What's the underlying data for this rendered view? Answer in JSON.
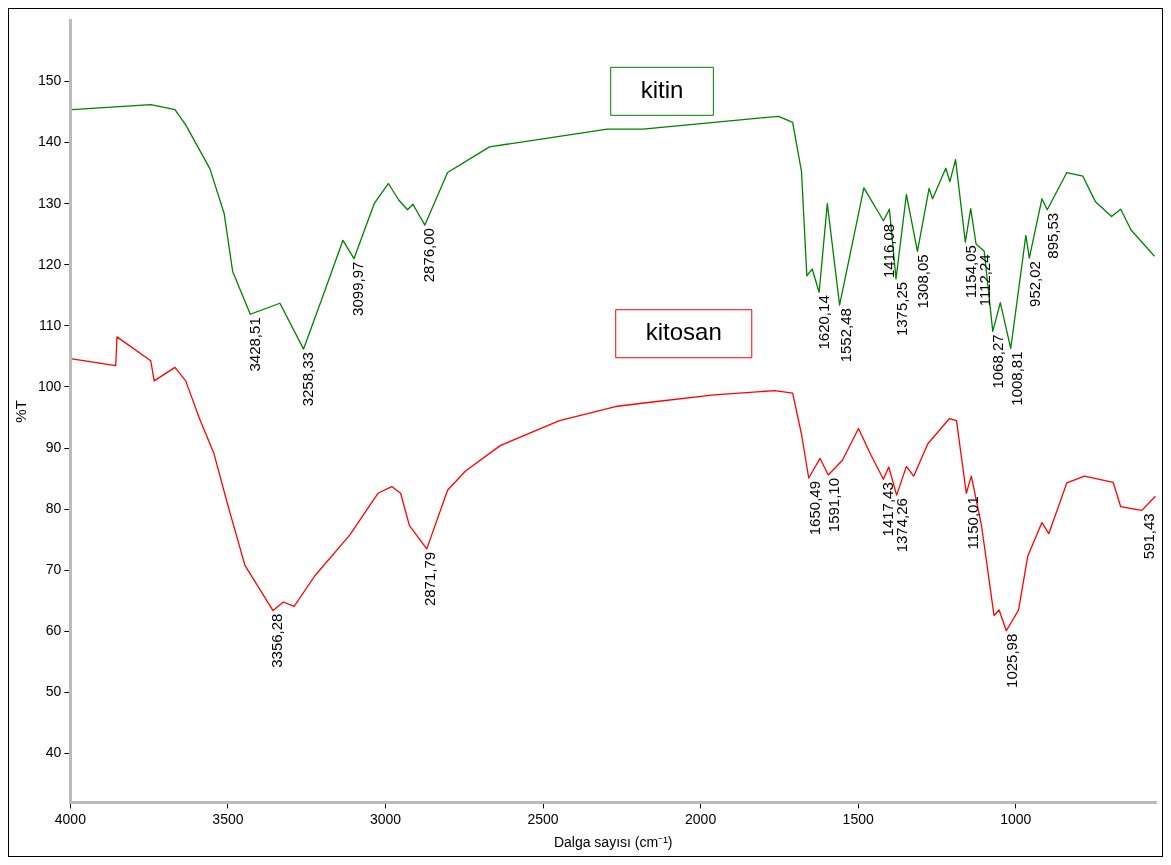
{
  "chart_data": {
    "type": "line",
    "xlabel": "Dalga sayısı (cm⁻¹)",
    "ylabel": "%T",
    "xlim": [
      4000,
      555
    ],
    "xticks": [
      4000,
      3500,
      3000,
      2500,
      2000,
      1500,
      1000
    ],
    "ylim": [
      32,
      160
    ],
    "yticks": [
      40,
      50,
      60,
      70,
      80,
      90,
      100,
      110,
      120,
      130,
      140,
      150
    ],
    "grid": false,
    "legend": false,
    "series": [
      {
        "name": "kitin",
        "color": "#008000",
        "x": [
          3995,
          3745,
          3668,
          3634,
          3557,
          3512,
          3485,
          3429,
          3335,
          3260,
          3202,
          3135,
          3100,
          3035,
          2991,
          2958,
          2930,
          2913,
          2875,
          2803,
          2670,
          2296,
          2183,
          1957,
          1753,
          1708,
          1680,
          1663,
          1646,
          1624,
          1598,
          1559,
          1482,
          1420,
          1401,
          1380,
          1347,
          1312,
          1275,
          1264,
          1222,
          1209,
          1191,
          1160,
          1143,
          1126,
          1100,
          1073,
          1049,
          1016,
          968,
          957,
          917,
          900,
          838,
          787,
          747,
          696,
          667,
          634,
          560
        ],
        "values": [
          145.4,
          146.2,
          145.4,
          142.9,
          135.7,
          128.4,
          118.9,
          111.9,
          113.7,
          106.2,
          114.4,
          124.0,
          121.0,
          130.1,
          133.3,
          130.6,
          129.0,
          129.9,
          126.5,
          135.1,
          139.3,
          142.2,
          142.2,
          143.3,
          144.3,
          143.3,
          135.3,
          118.2,
          119.3,
          115.5,
          130.0,
          113.4,
          132.6,
          127.2,
          129.1,
          117.7,
          131.5,
          122.2,
          132.5,
          130.8,
          135.8,
          133.6,
          137.2,
          123.7,
          129.2,
          123.4,
          122.2,
          109.1,
          113.8,
          106.3,
          124.8,
          121.1,
          130.8,
          129.0,
          135.1,
          134.5,
          130.3,
          127.9,
          129.1,
          125.7,
          121.4
        ]
      },
      {
        "name": "kitosan",
        "color": "#ff0000",
        "x": [
          3995,
          3856,
          3852,
          3745,
          3734,
          3668,
          3634,
          3590,
          3545,
          3501,
          3446,
          3357,
          3324,
          3290,
          3224,
          3113,
          3024,
          2980,
          2952,
          2924,
          2869,
          2803,
          2747,
          2636,
          2448,
          2270,
          2160,
          1957,
          1765,
          1708,
          1680,
          1657,
          1621,
          1595,
          1550,
          1499,
          1460,
          1420,
          1403,
          1378,
          1347,
          1324,
          1279,
          1211,
          1188,
          1157,
          1141,
          1109,
          1069,
          1053,
          1030,
          991,
          962,
          917,
          895,
          838,
          782,
          691,
          667,
          600,
          557
        ],
        "values": [
          104.6,
          103.5,
          108.2,
          104.3,
          101.0,
          103.2,
          101.0,
          94.8,
          89.2,
          80.8,
          70.8,
          63.4,
          64.8,
          64.1,
          69.1,
          75.8,
          82.6,
          83.7,
          82.6,
          77.3,
          73.5,
          83.1,
          86.2,
          90.4,
          94.5,
          96.8,
          97.5,
          98.7,
          99.4,
          99.0,
          92.3,
          85.1,
          88.3,
          85.6,
          88.0,
          93.2,
          88.9,
          84.9,
          86.9,
          82.3,
          87.0,
          85.4,
          90.7,
          94.8,
          94.5,
          82.6,
          85.4,
          77.4,
          62.6,
          63.5,
          60.1,
          63.5,
          72.3,
          77.8,
          76.0,
          84.3,
          85.4,
          84.4,
          80.4,
          79.8,
          82.1
        ]
      }
    ],
    "annotations": [
      {
        "text": "3428,51",
        "x": 3428.51,
        "y": 111.9
      },
      {
        "text": "3258,33",
        "x": 3258.33,
        "y": 106.2
      },
      {
        "text": "3099,97",
        "x": 3099.97,
        "y": 121.0
      },
      {
        "text": "2876,00",
        "x": 2876.0,
        "y": 126.5
      },
      {
        "text": "1620,14",
        "x": 1620.14,
        "y": 115.5
      },
      {
        "text": "1552,48",
        "x": 1552.48,
        "y": 113.4
      },
      {
        "text": "1416,08",
        "x": 1416.08,
        "y": 127.2
      },
      {
        "text": "1375,25",
        "x": 1375.25,
        "y": 117.7
      },
      {
        "text": "1308,05",
        "x": 1308.05,
        "y": 122.2
      },
      {
        "text": "1154,05",
        "x": 1154.05,
        "y": 123.7
      },
      {
        "text": "1112,24",
        "x": 1112.24,
        "y": 122.2
      },
      {
        "text": "1068,27",
        "x": 1068.27,
        "y": 109.1
      },
      {
        "text": "1008,81",
        "x": 1008.81,
        "y": 106.3
      },
      {
        "text": "952,02",
        "x": 952.02,
        "y": 121.1
      },
      {
        "text": "895,53",
        "x": 895.53,
        "y": 129.0
      },
      {
        "text": "3356,28",
        "x": 3356.28,
        "y": 63.4
      },
      {
        "text": "2871,79",
        "x": 2871.79,
        "y": 73.5
      },
      {
        "text": "1650,49",
        "x": 1650.49,
        "y": 85.1
      },
      {
        "text": "1591,10",
        "x": 1591.1,
        "y": 85.6
      },
      {
        "text": "1417,43",
        "x": 1417.43,
        "y": 84.9
      },
      {
        "text": "1374,26",
        "x": 1374.26,
        "y": 82.3
      },
      {
        "text": "1150,01",
        "x": 1150.01,
        "y": 82.6
      },
      {
        "text": "1025,98",
        "x": 1025.98,
        "y": 60.1
      },
      {
        "text": "591,43",
        "x": 591.43,
        "y": 79.8
      }
    ]
  }
}
